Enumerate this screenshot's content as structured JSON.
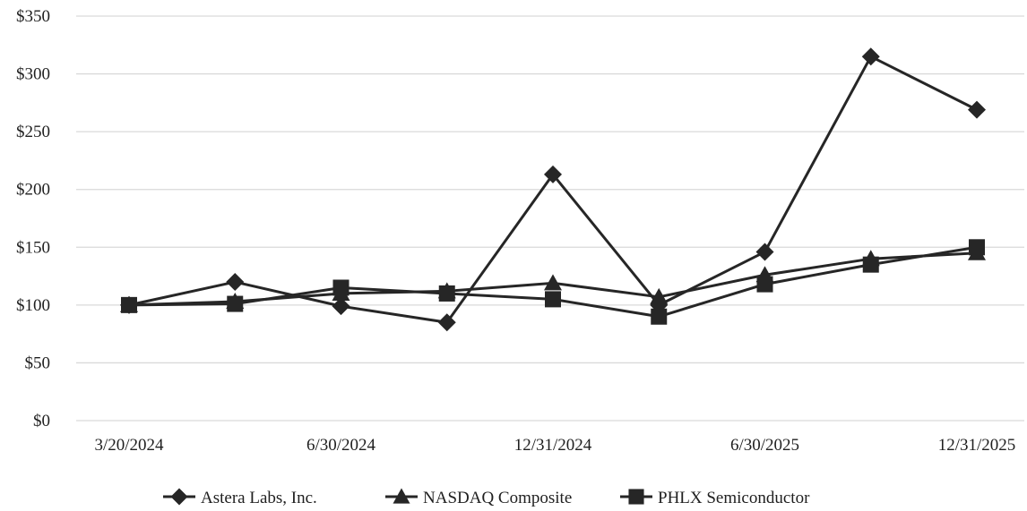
{
  "chart_data": {
    "type": "line",
    "title": "",
    "xlabel": "",
    "ylabel": "",
    "categories": [
      "3/20/2024",
      "",
      "6/30/2024",
      "",
      "12/31/2024",
      "",
      "6/30/2025",
      "",
      "12/31/2025"
    ],
    "x_tick_labels": [
      "3/20/2024",
      "6/30/2024",
      "12/31/2024",
      "6/30/2025",
      "12/31/2025"
    ],
    "y_tick_labels": [
      "$0",
      "$50",
      "$100",
      "$150",
      "$200",
      "$250",
      "$300",
      "$350"
    ],
    "ylim": [
      0,
      350
    ],
    "y_ticks": [
      0,
      50,
      100,
      150,
      200,
      250,
      300,
      350
    ],
    "grid": "horizontal",
    "legend_position": "bottom",
    "series": [
      {
        "name": "Astera Labs, Inc.",
        "marker": "diamond",
        "values": [
          100,
          120,
          99,
          85,
          213,
          100,
          146,
          315,
          269
        ]
      },
      {
        "name": "NASDAQ Composite",
        "marker": "triangle",
        "values": [
          100,
          103,
          110,
          112,
          119,
          107,
          126,
          140,
          145
        ]
      },
      {
        "name": "PHLX Semiconductor",
        "marker": "square",
        "values": [
          100,
          101,
          115,
          110,
          105,
          90,
          118,
          135,
          150
        ]
      }
    ],
    "colors": {
      "line": "#262626",
      "grid": "#d9d9d9",
      "text": "#1f1f1f"
    }
  }
}
